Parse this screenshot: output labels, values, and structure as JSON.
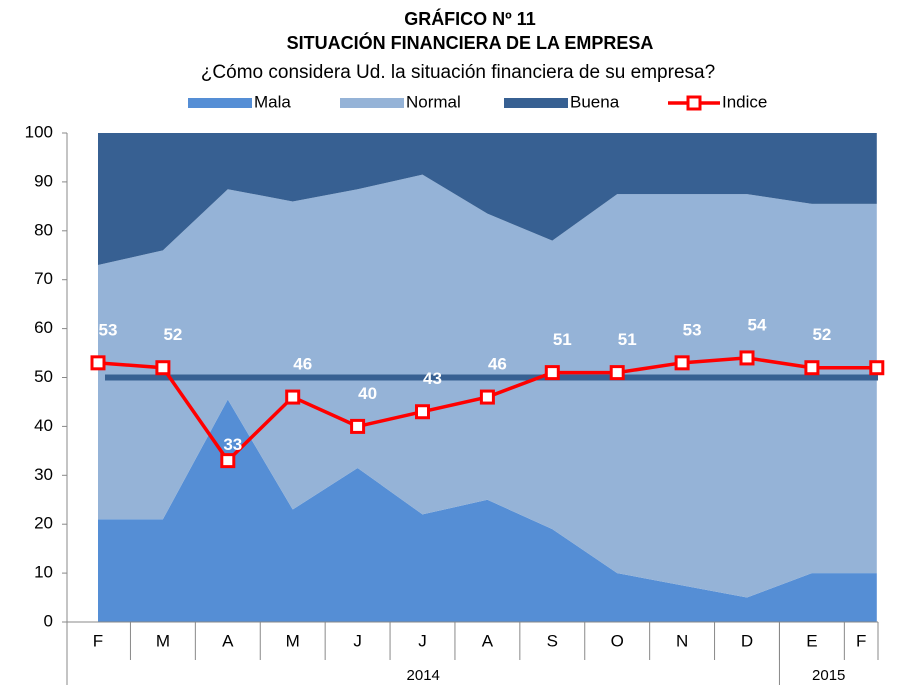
{
  "chart_data": {
    "type": "stacked_area_line",
    "title": "GRÁFICO Nº 11",
    "title2": "SITUACIÓN FINANCIERA DE LA EMPRESA",
    "subtitle": "¿Cómo considera Ud. la situación financiera de su empresa?",
    "categories": [
      "F",
      "M",
      "A",
      "M",
      "J",
      "J",
      "A",
      "S",
      "O",
      "N",
      "D",
      "E",
      "F"
    ],
    "year_groups": [
      {
        "label": "2014",
        "span": 11
      },
      {
        "label": "2015",
        "span": 2
      }
    ],
    "series": [
      {
        "name": "Mala",
        "color": "#558ed5",
        "values": [
          21,
          21,
          45.5,
          23,
          31.5,
          22,
          25,
          19,
          10,
          7.5,
          5,
          10,
          10
        ]
      },
      {
        "name": "Normal",
        "color": "#95b3d7",
        "values": [
          52,
          55,
          43,
          63,
          57,
          69.5,
          58.5,
          59,
          77.5,
          80,
          82.5,
          75.5,
          75.5
        ]
      },
      {
        "name": "Buena",
        "color": "#376092",
        "values": [
          27,
          24,
          11.5,
          14,
          11.5,
          8.5,
          16.5,
          22,
          12.5,
          12.5,
          12.5,
          14.5,
          14.5
        ]
      },
      {
        "name": "Indice",
        "color": "#ff0000",
        "type": "line",
        "values": [
          53,
          52,
          33,
          46,
          40,
          43,
          46,
          51,
          51,
          53,
          54,
          52,
          52
        ]
      }
    ],
    "reference_line": {
      "value": 50,
      "color": "#376092"
    },
    "ylim": [
      0,
      100
    ],
    "yticks": [
      0,
      10,
      20,
      30,
      40,
      50,
      60,
      70,
      80,
      90,
      100
    ]
  }
}
